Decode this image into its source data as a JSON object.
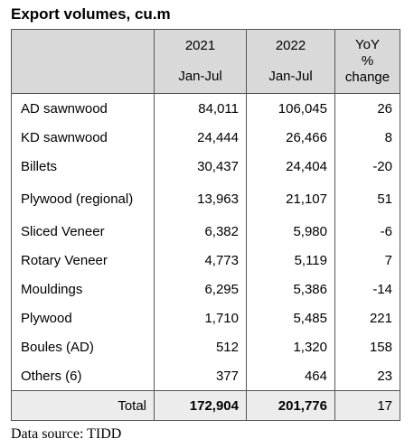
{
  "title": "Export volumes, cu.m",
  "header": {
    "col1_year": "2021",
    "col1_period": "Jan-Jul",
    "col2_year": "2022",
    "col2_period": "Jan-Jul",
    "col3_line1": "YoY",
    "col3_line2": "%",
    "col3_line3": "change"
  },
  "rows": [
    {
      "name": "AD sawnwood",
      "v2021": "84,011",
      "v2022": "106,045",
      "yoy": "26"
    },
    {
      "name": "KD sawnwood",
      "v2021": "24,444",
      "v2022": "26,466",
      "yoy": "8"
    },
    {
      "name": "Billets",
      "v2021": "30,437",
      "v2022": "24,404",
      "yoy": "-20"
    },
    {
      "name": "Plywood (regional)",
      "v2021": "13,963",
      "v2022": "21,107",
      "yoy": "51"
    },
    {
      "name": "Sliced Veneer",
      "v2021": "6,382",
      "v2022": "5,980",
      "yoy": "-6"
    },
    {
      "name": "Rotary Veneer",
      "v2021": "4,773",
      "v2022": "5,119",
      "yoy": "7"
    },
    {
      "name": "Mouldings",
      "v2021": "6,295",
      "v2022": "5,386",
      "yoy": "-14"
    },
    {
      "name": "Plywood",
      "v2021": "1,710",
      "v2022": "5,485",
      "yoy": "221"
    },
    {
      "name": "Boules (AD)",
      "v2021": "512",
      "v2022": "1,320",
      "yoy": "158"
    },
    {
      "name": "Others (6)",
      "v2021": "377",
      "v2022": "464",
      "yoy": "23"
    }
  ],
  "total": {
    "label": "Total",
    "v2021": "172,904",
    "v2022": "201,776",
    "yoy": "17"
  },
  "source": "Data source: TIDD"
}
